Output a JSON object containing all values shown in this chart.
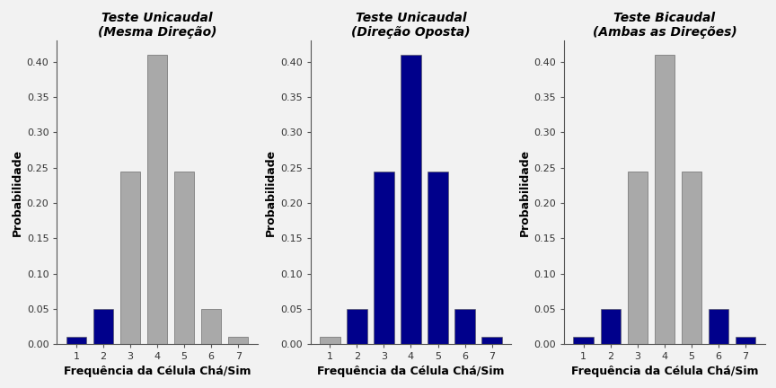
{
  "categories": [
    1,
    2,
    3,
    4,
    5,
    6,
    7
  ],
  "values": [
    0.01,
    0.05,
    0.245,
    0.41,
    0.245,
    0.05,
    0.01
  ],
  "subplots": [
    {
      "title": "Teste Unicaudal\n(Mesma Direção)",
      "colors": [
        "#00008B",
        "#00008B",
        "#A9A9A9",
        "#A9A9A9",
        "#A9A9A9",
        "#A9A9A9",
        "#A9A9A9"
      ]
    },
    {
      "title": "Teste Unicaudal\n(Direção Oposta)",
      "colors": [
        "#A9A9A9",
        "#00008B",
        "#00008B",
        "#00008B",
        "#00008B",
        "#00008B",
        "#00008B"
      ]
    },
    {
      "title": "Teste Bicaudal\n(Ambas as Direções)",
      "colors": [
        "#00008B",
        "#00008B",
        "#A9A9A9",
        "#A9A9A9",
        "#A9A9A9",
        "#00008B",
        "#00008B"
      ]
    }
  ],
  "xlabel": "Frequência da Célula Chá/Sim",
  "ylabel": "Probabilidade",
  "ylim": [
    0,
    0.43
  ],
  "yticks": [
    0.0,
    0.05,
    0.1,
    0.15,
    0.2,
    0.25,
    0.3,
    0.35,
    0.4
  ],
  "title_fontsize": 10,
  "label_fontsize": 9,
  "tick_fontsize": 8,
  "blue_color": "#00008B",
  "gray_color": "#A9A9A9",
  "bar_edge_color": "#555555",
  "bar_edge_width": 0.4,
  "fig_bg": "#f2f2f2",
  "ax_bg": "#f2f2f2",
  "bar_width": 0.75
}
